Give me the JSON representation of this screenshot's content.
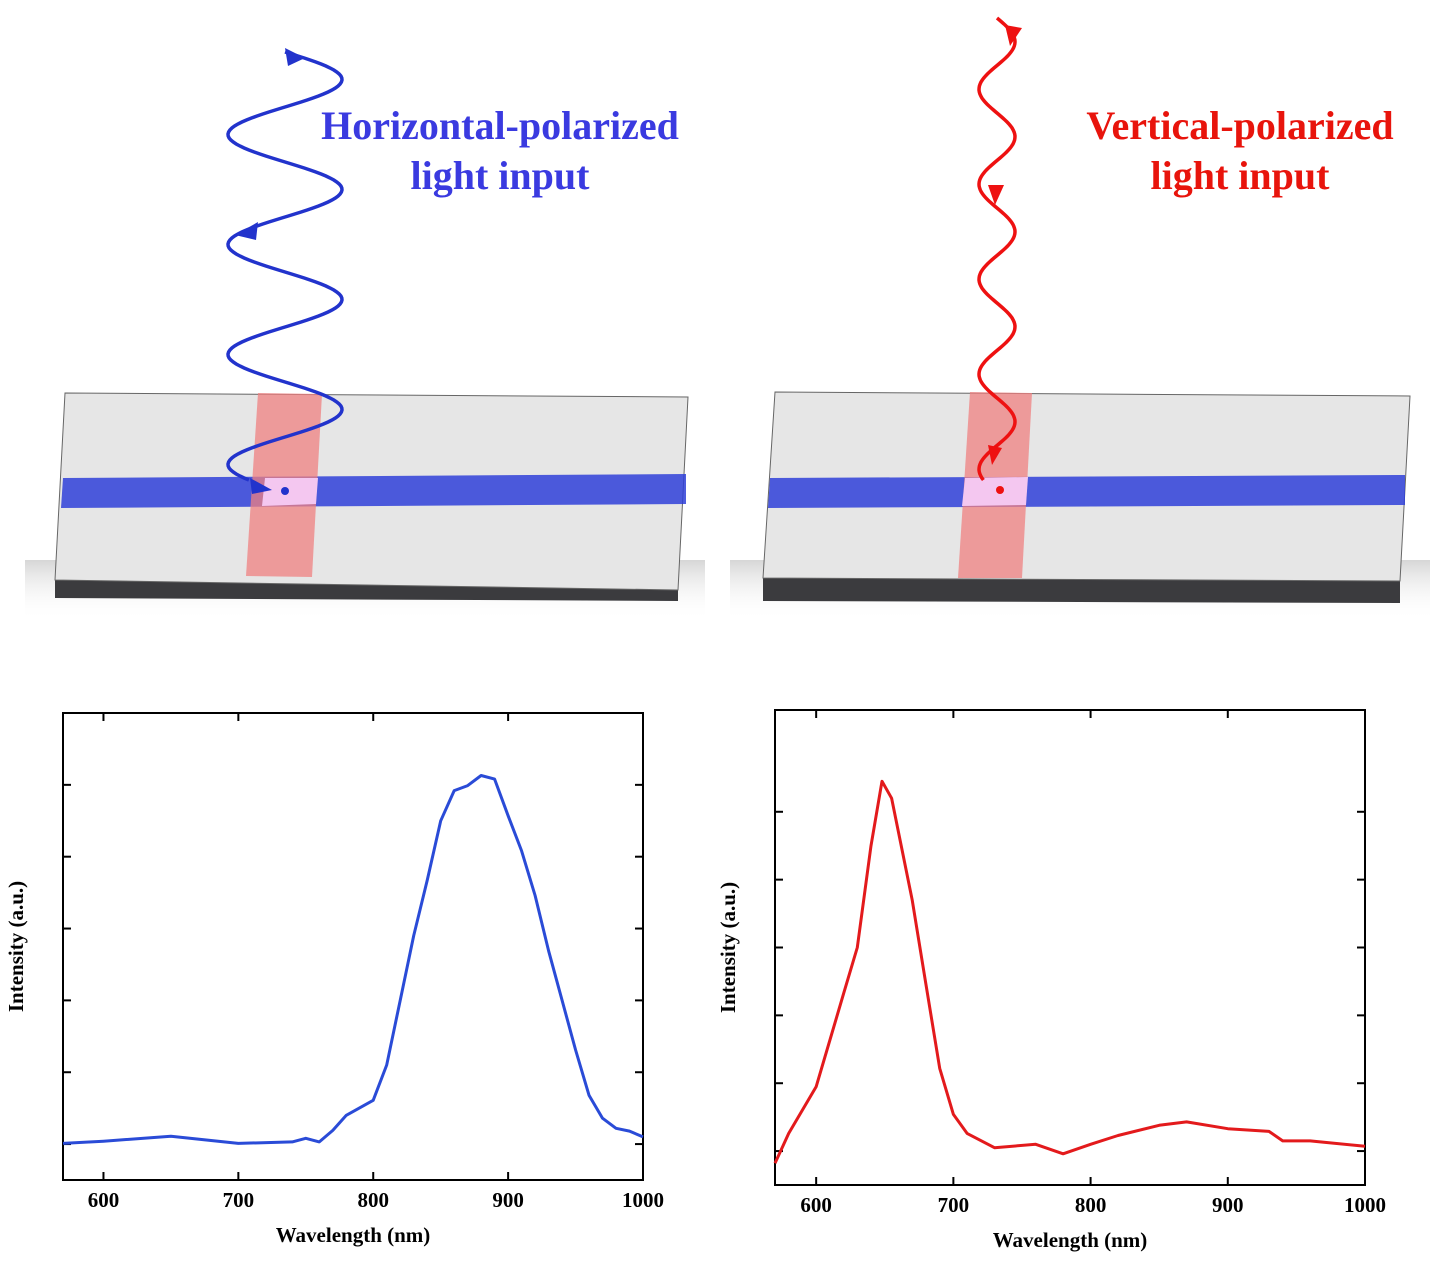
{
  "figure": {
    "panels": [
      {
        "label_lines": [
          "Horizontal-polarized",
          "light input"
        ],
        "color": "#3a3ae0"
      },
      {
        "label_lines": [
          "Vertical-polarized",
          "light input"
        ],
        "color": "#e8140c"
      }
    ]
  },
  "chart_data": [
    {
      "type": "line",
      "xlabel": "Wavelength (nm)",
      "ylabel": "Intensity (a.u.)",
      "x": [
        570,
        600,
        650,
        700,
        740,
        750,
        760,
        770,
        780,
        800,
        810,
        820,
        830,
        840,
        850,
        860,
        870,
        880,
        890,
        900,
        910,
        920,
        930,
        940,
        950,
        960,
        970,
        980,
        990,
        1000
      ],
      "values": [
        0.01,
        0.04,
        0.11,
        0.01,
        0.03,
        0.08,
        0.03,
        0.19,
        0.4,
        0.61,
        1.1,
        2.0,
        2.9,
        3.67,
        4.5,
        4.92,
        4.99,
        5.13,
        5.08,
        4.57,
        4.08,
        3.46,
        2.69,
        2.0,
        1.31,
        0.68,
        0.36,
        0.22,
        0.18,
        0.1
      ],
      "color": "#2a4bd7",
      "xlim": [
        570,
        1000
      ],
      "xticks": [
        600,
        700,
        800,
        900,
        1000
      ],
      "ylim": [
        -0.5,
        6
      ],
      "yticks": [
        0,
        1,
        2,
        3,
        4,
        5
      ],
      "ytick_labels": false
    },
    {
      "type": "line",
      "xlabel": "Wavelength (nm)",
      "ylabel": "Intensity (a.u.)",
      "x": [
        570,
        580,
        600,
        620,
        630,
        640,
        648,
        655,
        670,
        680,
        690,
        700,
        710,
        730,
        760,
        780,
        800,
        820,
        850,
        870,
        900,
        930,
        940,
        960,
        1000
      ],
      "values": [
        -0.18,
        0.26,
        0.95,
        2.32,
        3.0,
        4.5,
        5.45,
        5.2,
        3.7,
        2.46,
        1.22,
        0.54,
        0.26,
        0.05,
        0.1,
        -0.04,
        0.1,
        0.23,
        0.38,
        0.43,
        0.33,
        0.29,
        0.15,
        0.15,
        0.07
      ],
      "color": "#e31a1c",
      "xlim": [
        570,
        1000
      ],
      "xticks": [
        600,
        700,
        800,
        900,
        1000
      ],
      "ylim": [
        -0.5,
        6.5
      ],
      "yticks": [
        0,
        1,
        2,
        3,
        4,
        5
      ],
      "ytick_labels": false
    }
  ]
}
